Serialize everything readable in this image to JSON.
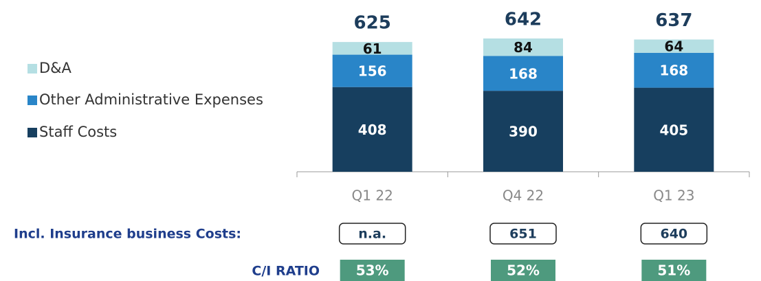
{
  "chart_data": {
    "type": "stacked_bar",
    "categories": [
      "Q1 22",
      "Q4 22",
      "Q1 23"
    ],
    "series": [
      {
        "name": "Staff Costs",
        "color": "#173f5f",
        "values": [
          408,
          390,
          405
        ]
      },
      {
        "name": "Other Administrative Expenses",
        "color": "#2985c8",
        "values": [
          156,
          168,
          168
        ]
      },
      {
        "name": "D&A",
        "color": "#b5dfe3",
        "values": [
          61,
          84,
          64
        ]
      }
    ],
    "totals": [
      625,
      642,
      637
    ],
    "insurance_row": {
      "label": "Incl. Insurance business Costs:",
      "values": [
        "n.a.",
        651,
        640
      ]
    },
    "ratio_row": {
      "label": "C/I RATIO",
      "values": [
        53,
        52,
        51
      ],
      "value_labels": [
        "53%",
        "52%",
        "51%"
      ],
      "color": "#4e9a7e"
    }
  }
}
